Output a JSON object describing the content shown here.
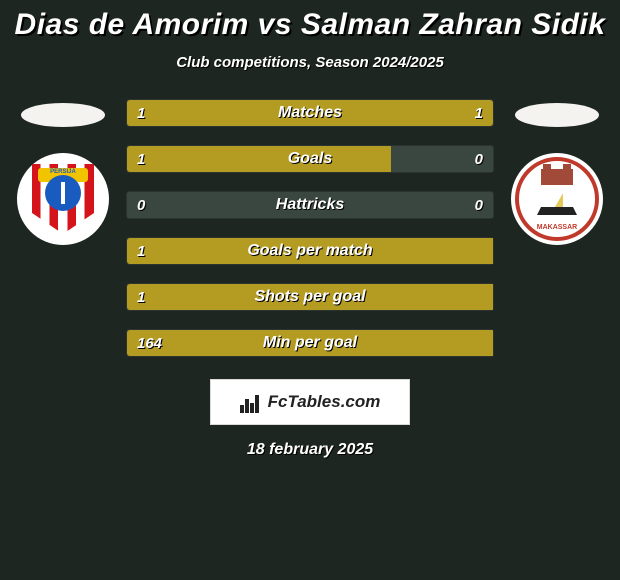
{
  "background_color": "#1e2621",
  "text_color": "#ffffff",
  "title": "Dias de Amorim vs Salman Zahran Sidik",
  "subtitle": "Club competitions, Season 2024/2025",
  "date_line": "18 february 2025",
  "branding": {
    "text": "FcTables.com",
    "box_bg": "#ffffff",
    "text_color": "#222222"
  },
  "player_left": {
    "flag_bg": "#f5f3ef",
    "crest_bg": "#ffffff",
    "crest_primary": "#d4131b",
    "crest_inner": "#1a5bbf",
    "banner_text": "PERSIJA"
  },
  "player_right": {
    "flag_bg": "#f5f3ef",
    "crest_bg": "#ffffff",
    "crest_ring": "#c0392b",
    "banner_text": "MAKASSAR"
  },
  "bar_style": {
    "track_bg": "#3a4640",
    "fill_color": "#b49b21",
    "label_color": "#ffffff",
    "value_color": "#ffffff",
    "label_fontsize": 16,
    "value_fontsize": 15
  },
  "bars": [
    {
      "label": "Matches",
      "left": "1",
      "right": "1",
      "left_pct": 50,
      "right_pct": 50
    },
    {
      "label": "Goals",
      "left": "1",
      "right": "0",
      "left_pct": 72,
      "right_pct": 0
    },
    {
      "label": "Hattricks",
      "left": "0",
      "right": "0",
      "left_pct": 0,
      "right_pct": 0
    },
    {
      "label": "Goals per match",
      "left": "1",
      "right": "",
      "left_pct": 100,
      "right_pct": 0
    },
    {
      "label": "Shots per goal",
      "left": "1",
      "right": "",
      "left_pct": 100,
      "right_pct": 0
    },
    {
      "label": "Min per goal",
      "left": "164",
      "right": "",
      "left_pct": 100,
      "right_pct": 0
    }
  ]
}
